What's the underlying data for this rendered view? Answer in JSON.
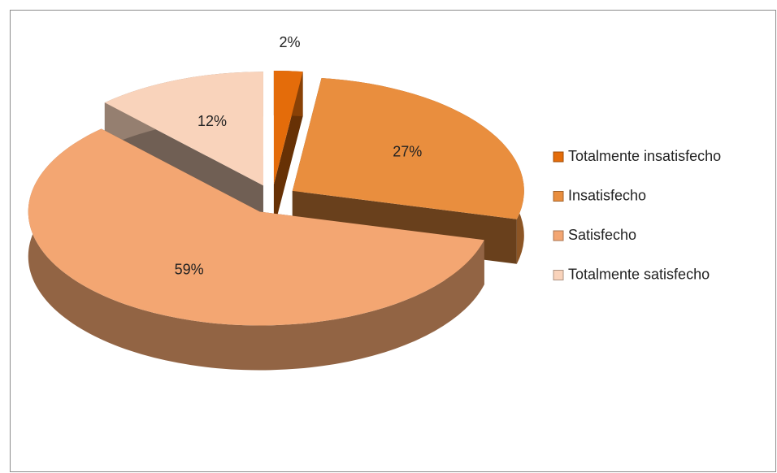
{
  "chart_data": {
    "type": "pie",
    "categories": [
      "Totalmente insatisfecho",
      "Insatisfecho",
      "Satisfecho",
      "Totalmente satisfecho"
    ],
    "values": [
      2,
      27,
      59,
      12
    ],
    "value_labels": [
      "2%",
      "27%",
      "59%",
      "12%"
    ],
    "colors": [
      "#e46c0a",
      "#e98e3e",
      "#f3a672",
      "#f9d3bb"
    ],
    "legend": "right"
  }
}
